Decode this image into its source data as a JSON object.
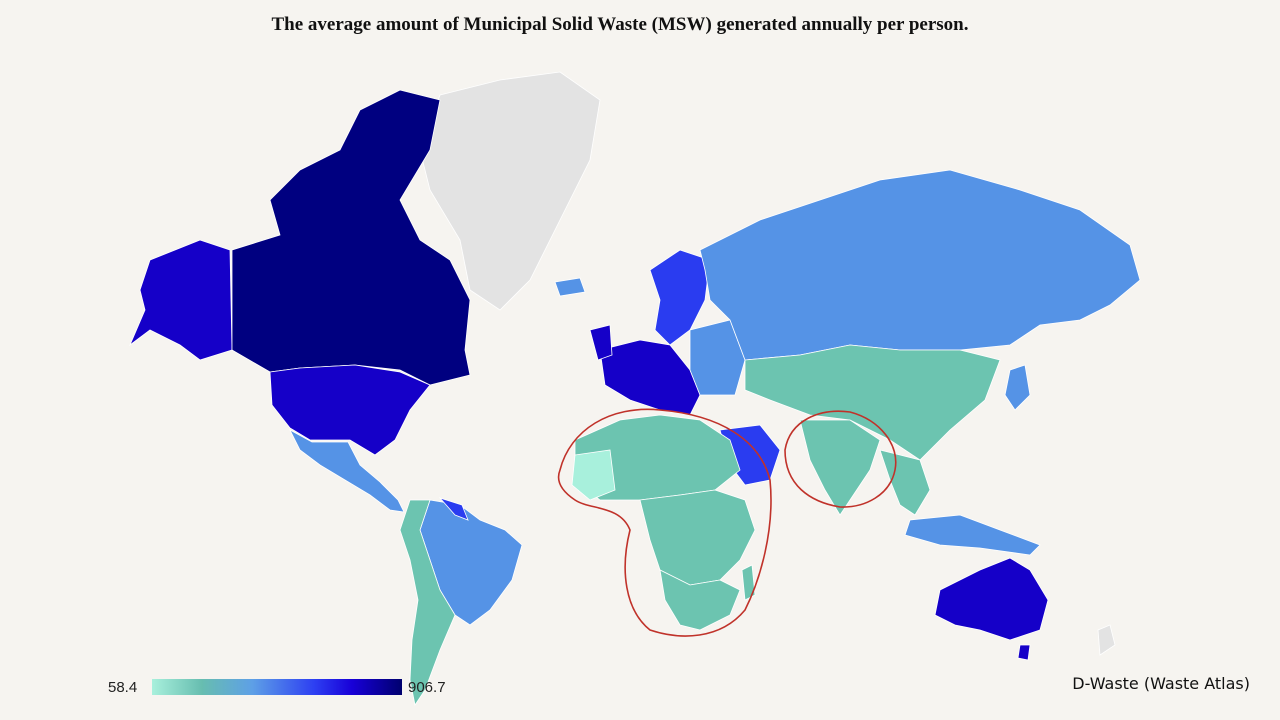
{
  "title": "The average amount of Municipal Solid Waste (MSW) generated annually per person.",
  "legend": {
    "min": "58.4",
    "max": "906.7"
  },
  "credit": "D-Waste (Waste Atlas)",
  "colors": {
    "no_data": "#e3e3e3",
    "lowest": "#a8f0dc",
    "low": "#6cc4b0",
    "mid_low": "#66aee0",
    "mid": "#5593e6",
    "mid_high": "#2a3cf0",
    "high": "#1500c8",
    "highest": "#000080",
    "annotation": "#c0322a",
    "border": "#ffffff"
  }
}
